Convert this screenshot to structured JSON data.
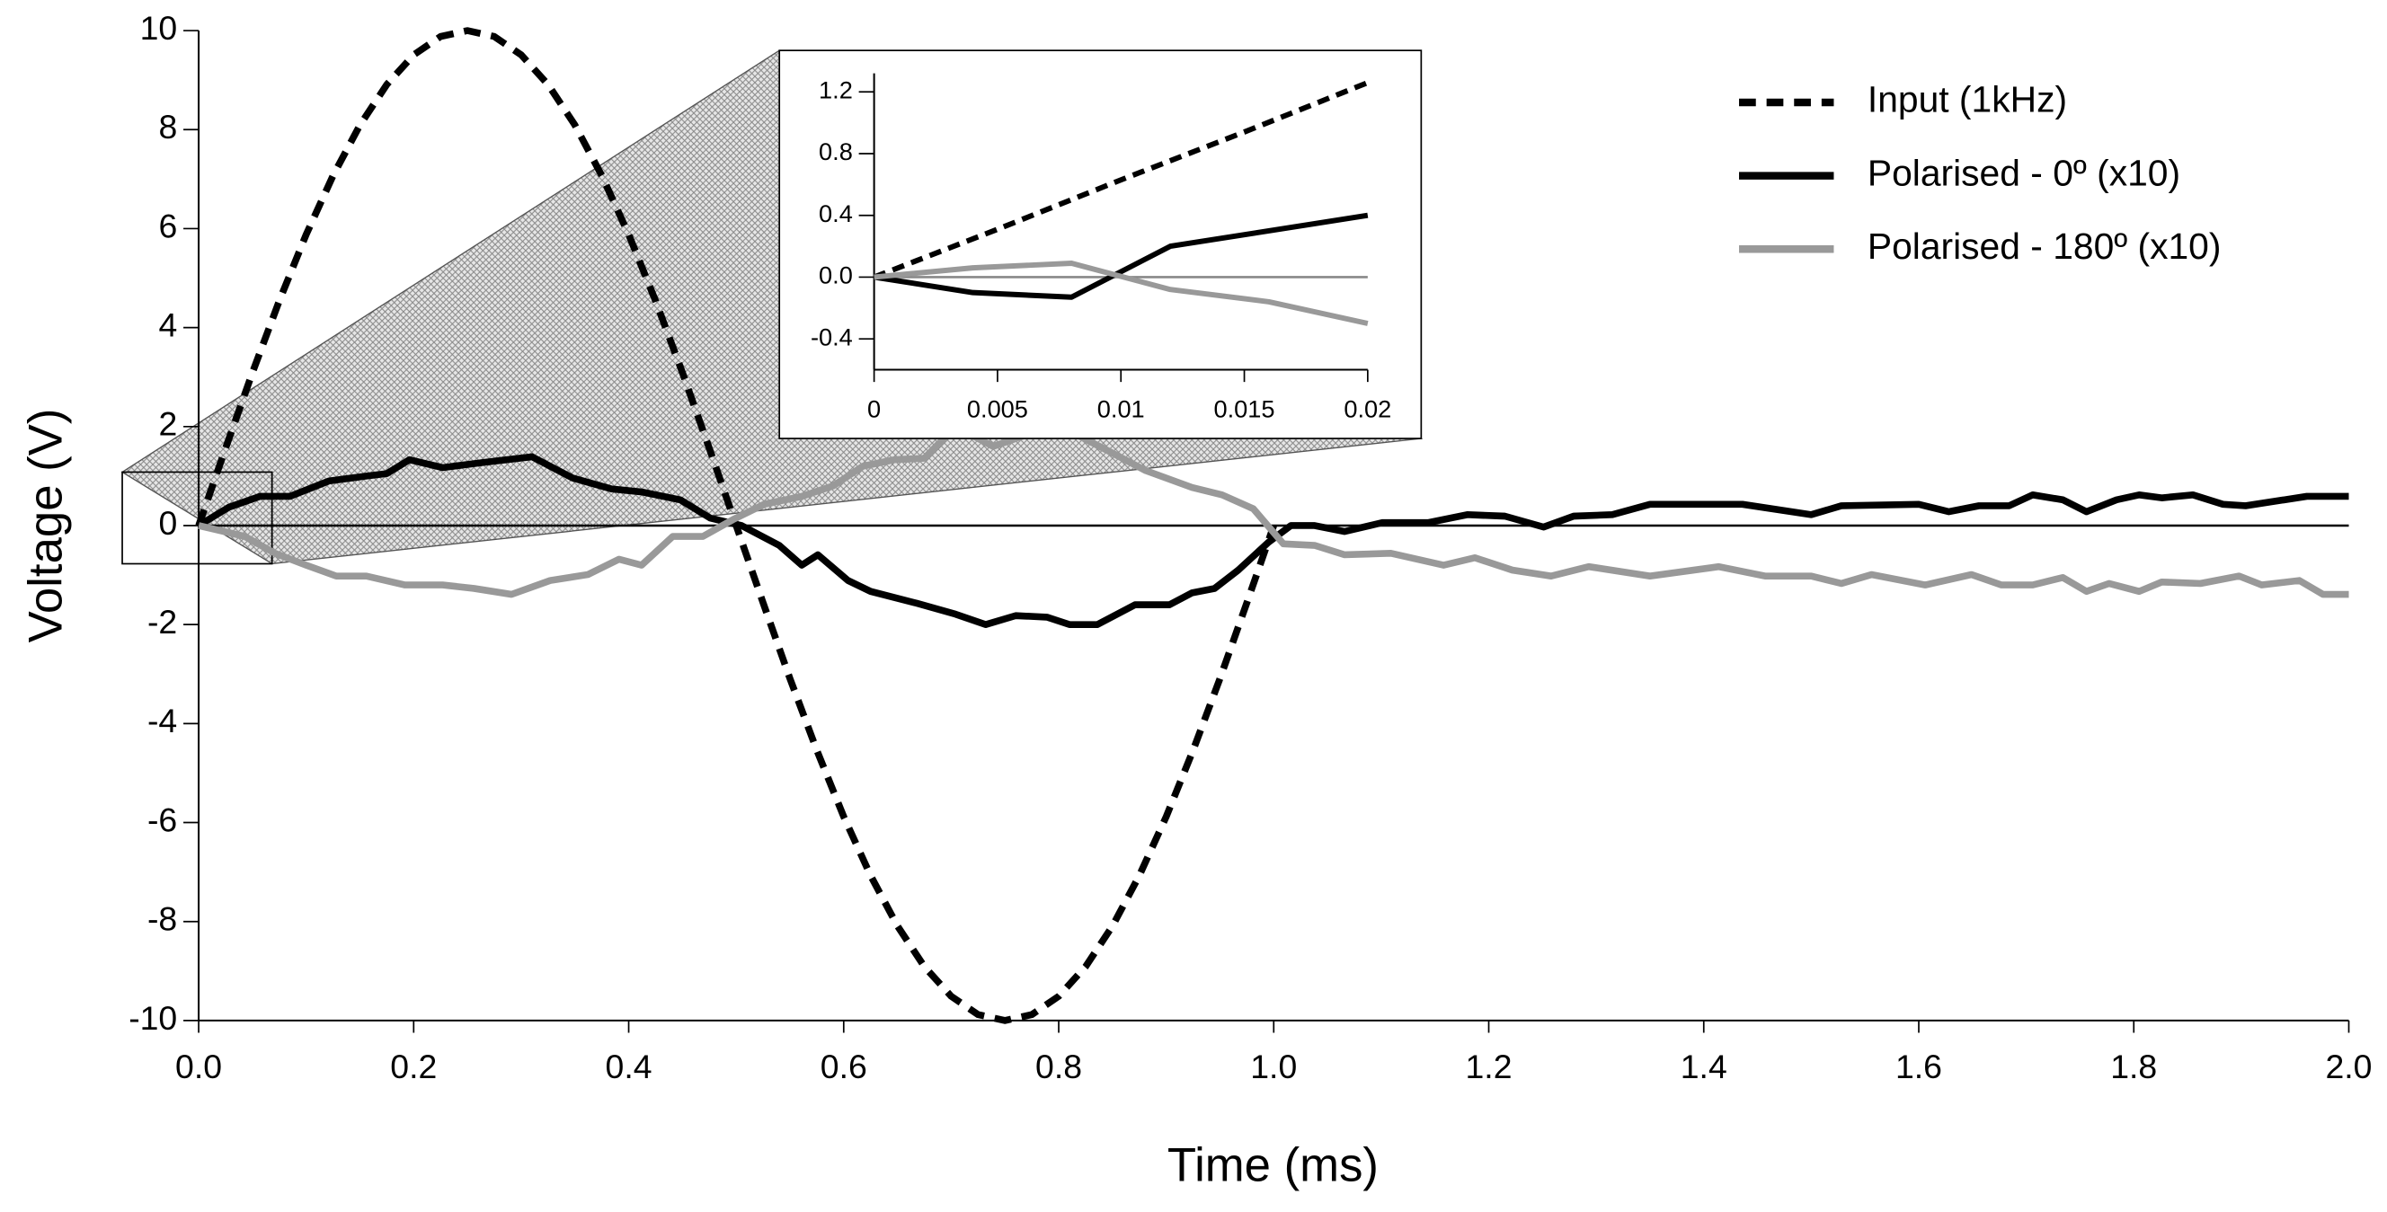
{
  "chart_data": [
    {
      "type": "line",
      "xlabel": "Time (ms)",
      "ylabel": "Voltage (V)",
      "legend": "upper right",
      "xlim": [
        0,
        2
      ],
      "ylim": [
        -10,
        10
      ],
      "xticks": [
        {
          "value": 0,
          "label": "0.0"
        },
        0.2,
        0.4,
        0.6,
        0.8,
        {
          "value": 1,
          "label": "1.0"
        },
        1.2,
        1.4,
        1.6,
        1.8,
        {
          "value": 2,
          "label": "2.0"
        }
      ],
      "yticks": [
        -10,
        -8,
        -6,
        -4,
        -2,
        0,
        2,
        4,
        6,
        8,
        10
      ],
      "series": [
        {
          "name": "Input (1kHz)",
          "color": "#000000",
          "dash": "dashed",
          "x": [
            0,
            0.025,
            0.05,
            0.075,
            0.1,
            0.125,
            0.15,
            0.175,
            0.2,
            0.225,
            0.25,
            0.275,
            0.3,
            0.325,
            0.35,
            0.375,
            0.4,
            0.425,
            0.45,
            0.475,
            0.5,
            0.525,
            0.55,
            0.575,
            0.6,
            0.625,
            0.65,
            0.675,
            0.7,
            0.725,
            0.75,
            0.775,
            0.8,
            0.825,
            0.85,
            0.875,
            0.9,
            0.925,
            0.95,
            0.975,
            1
          ],
          "values": [
            0,
            1.56,
            3.09,
            4.54,
            5.88,
            7.07,
            8.09,
            8.91,
            9.51,
            9.88,
            10,
            9.88,
            9.51,
            8.91,
            8.09,
            7.07,
            5.88,
            4.54,
            3.09,
            1.56,
            0,
            -1.56,
            -3.09,
            -4.54,
            -5.88,
            -7.07,
            -8.09,
            -8.91,
            -9.51,
            -9.88,
            -10,
            -9.88,
            -9.51,
            -8.91,
            -8.09,
            -7.07,
            -5.88,
            -4.54,
            -3.09,
            -1.56,
            0
          ]
        },
        {
          "name": "Polarised - 0º (x10)",
          "color": "#000000",
          "dash": "solid",
          "x": [
            0,
            0.028,
            0.057,
            0.085,
            0.121,
            0.156,
            0.175,
            0.196,
            0.227,
            0.263,
            0.31,
            0.348,
            0.384,
            0.412,
            0.448,
            0.476,
            0.505,
            0.54,
            0.561,
            0.576,
            0.604,
            0.625,
            0.668,
            0.704,
            0.732,
            0.76,
            0.789,
            0.81,
            0.836,
            0.871,
            0.903,
            0.924,
            0.945,
            0.967,
            0.995,
            1.016,
            1.038,
            1.066,
            1.101,
            1.144,
            1.18,
            1.215,
            1.251,
            1.279,
            1.315,
            1.35,
            1.436,
            1.5,
            1.528,
            1.6,
            1.628,
            1.656,
            1.684,
            1.706,
            1.734,
            1.756,
            1.784,
            1.805,
            1.826,
            1.855,
            1.883,
            1.904,
            1.961,
            2
          ],
          "values": [
            0,
            0.37,
            0.59,
            0.59,
            0.9,
            1,
            1.05,
            1.33,
            1.17,
            1.27,
            1.39,
            0.96,
            0.74,
            0.68,
            0.52,
            0.15,
            0,
            -0.4,
            -0.8,
            -0.59,
            -1.11,
            -1.33,
            -1.57,
            -1.79,
            -2,
            -1.82,
            -1.85,
            -2,
            -2,
            -1.6,
            -1.6,
            -1.36,
            -1.27,
            -0.9,
            -0.34,
            0,
            0,
            -0.12,
            0.06,
            0.06,
            0.22,
            0.19,
            -0.03,
            0.19,
            0.22,
            0.43,
            0.43,
            0.22,
            0.4,
            0.43,
            0.28,
            0.4,
            0.4,
            0.62,
            0.52,
            0.28,
            0.52,
            0.62,
            0.56,
            0.62,
            0.43,
            0.4,
            0.59,
            0.59
          ]
        },
        {
          "name": "Polarised - 180º (x10)",
          "color": "#999999",
          "dash": "solid",
          "x": [
            0,
            0.043,
            0.071,
            0.1,
            0.128,
            0.156,
            0.192,
            0.227,
            0.256,
            0.291,
            0.327,
            0.362,
            0.391,
            0.412,
            0.441,
            0.469,
            0.497,
            0.526,
            0.561,
            0.59,
            0.618,
            0.647,
            0.675,
            0.704,
            0.739,
            0.768,
            0.81,
            0.846,
            0.881,
            0.924,
            0.952,
            0.981,
            1.009,
            1.038,
            1.066,
            1.109,
            1.158,
            1.187,
            1.222,
            1.258,
            1.293,
            1.35,
            1.414,
            1.457,
            1.5,
            1.528,
            1.556,
            1.606,
            1.649,
            1.677,
            1.706,
            1.734,
            1.756,
            1.777,
            1.805,
            1.826,
            1.862,
            1.898,
            1.919,
            1.954,
            1.976,
            2
          ],
          "values": [
            0,
            -0.22,
            -0.56,
            -0.8,
            -1.02,
            -1.02,
            -1.2,
            -1.2,
            -1.27,
            -1.39,
            -1.11,
            -0.99,
            -0.68,
            -0.8,
            -0.22,
            -0.22,
            0.12,
            0.43,
            0.59,
            0.8,
            1.2,
            1.33,
            1.36,
            2,
            1.6,
            1.82,
            1.91,
            1.51,
            1.11,
            0.77,
            0.62,
            0.34,
            -0.37,
            -0.4,
            -0.59,
            -0.56,
            -0.8,
            -0.65,
            -0.9,
            -1.02,
            -0.83,
            -1.02,
            -0.83,
            -1.02,
            -1.02,
            -1.17,
            -0.99,
            -1.2,
            -0.99,
            -1.2,
            -1.2,
            -1.05,
            -1.33,
            -1.17,
            -1.33,
            -1.14,
            -1.17,
            -1.02,
            -1.2,
            -1.11,
            -1.39,
            -1.39
          ]
        }
      ]
    },
    {
      "type": "line",
      "xlim": [
        0,
        0.02
      ],
      "ylim": [
        -0.6,
        1.32
      ],
      "xticks": [
        0,
        0.005,
        0.01,
        0.015,
        0.02
      ],
      "yticks": [
        -0.4,
        {
          "value": 0,
          "label": "0.0"
        },
        0.4,
        0.8,
        1.2
      ],
      "series": [
        {
          "color": "#000000",
          "dash": "dashed",
          "x": [
            0,
            0.005,
            0.01,
            0.015,
            0.02
          ],
          "values": [
            0,
            0.31,
            0.63,
            0.94,
            1.26
          ]
        },
        {
          "color": "#000000",
          "dash": "solid",
          "x": [
            0,
            0.004,
            0.008,
            0.012,
            0.02
          ],
          "values": [
            0,
            -0.1,
            -0.13,
            0.2,
            0.4
          ]
        },
        {
          "color": "#999999",
          "dash": "solid",
          "x": [
            0,
            0.004,
            0.008,
            0.012,
            0.016,
            0.02
          ],
          "values": [
            0,
            0.06,
            0.09,
            -0.08,
            -0.16,
            -0.3
          ]
        }
      ]
    }
  ]
}
